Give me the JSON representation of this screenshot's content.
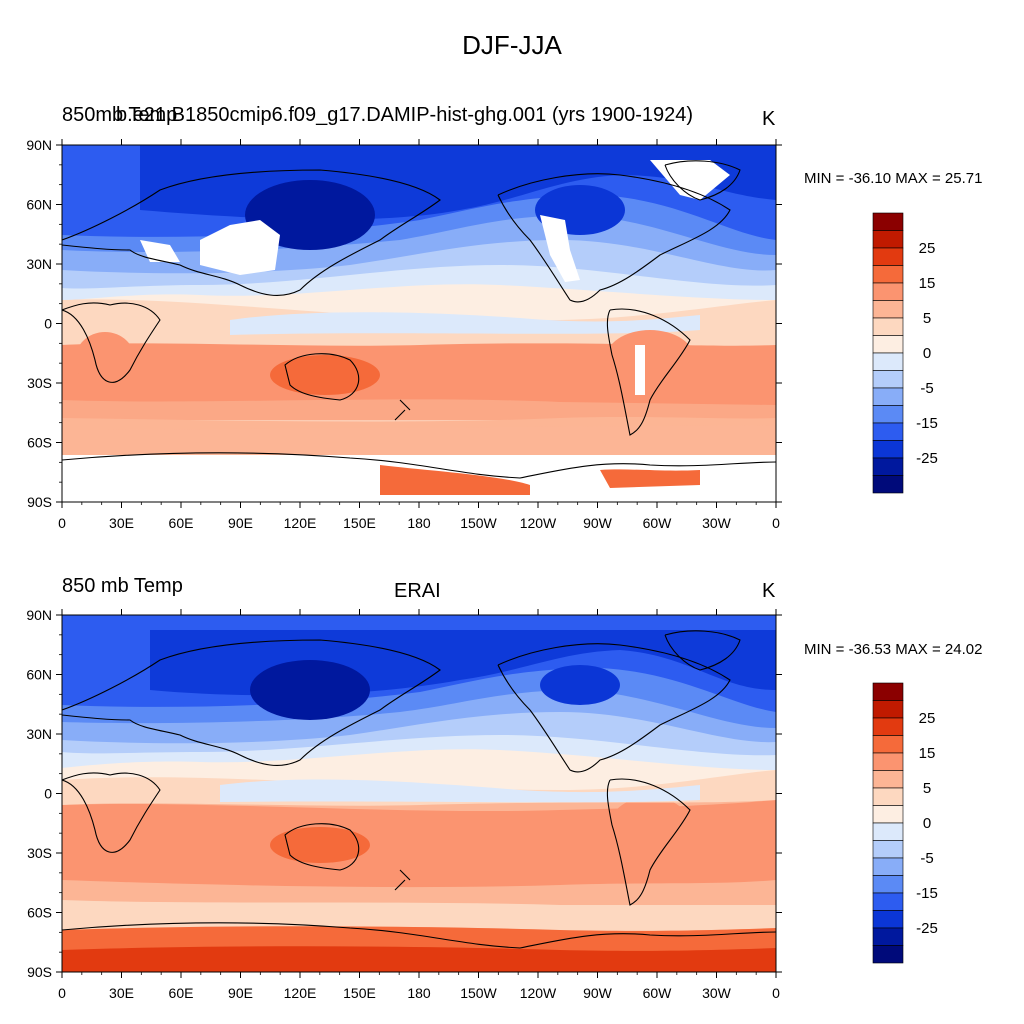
{
  "title": "DJF-JJA",
  "colorbar": {
    "labels": [
      "25",
      "15",
      "5",
      "0",
      "-5",
      "-15",
      "-25"
    ],
    "colors": [
      "#8b0000",
      "#c01a00",
      "#e23a10",
      "#f56a3a",
      "#fb9470",
      "#fcb595",
      "#fdd8c0",
      "#fdeee2",
      "#dce9fb",
      "#b4cdfa",
      "#88adf8",
      "#5b8af5",
      "#2d5cf0",
      "#0b36d6",
      "#00189e",
      "#000a7a"
    ]
  },
  "axes": {
    "x_ticks": [
      "0",
      "30E",
      "60E",
      "90E",
      "120E",
      "150E",
      "180",
      "150W",
      "120W",
      "90W",
      "60W",
      "30W",
      "0"
    ],
    "y_ticks": [
      "90N",
      "60N",
      "30N",
      "0",
      "30S",
      "60S",
      "90S"
    ]
  },
  "panels": [
    {
      "left_title": "850mb Temp",
      "overlap_title": "b.e21.B1850cmip6.f09_g17.DAMIP-hist-ghg.001 (yrs 1900-1924)",
      "center_title": "",
      "units": "K",
      "min_max": "MIN = -36.10 MAX =  25.71"
    },
    {
      "left_title": "850 mb Temp",
      "overlap_title": "",
      "center_title": "ERAI",
      "units": "K",
      "min_max": "MIN = -36.53 MAX =  24.02"
    }
  ]
}
